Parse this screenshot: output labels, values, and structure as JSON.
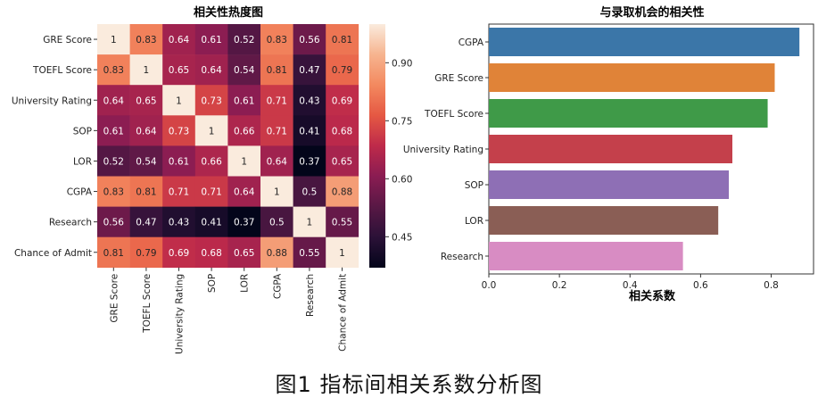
{
  "caption": "图1 指标间相关系数分析图",
  "chart_data": [
    {
      "type": "heatmap",
      "title": "相关性热度图",
      "row_labels": [
        "GRE Score",
        "TOEFL Score",
        "University Rating",
        "SOP",
        "LOR",
        "CGPA",
        "Research",
        "Chance of Admit"
      ],
      "col_labels": [
        "GRE Score",
        "TOEFL Score",
        "University Rating",
        "SOP",
        "LOR",
        "CGPA",
        "Research",
        "Chance of Admit"
      ],
      "cell_labels": [
        [
          "1",
          "0.83",
          "0.64",
          "0.61",
          "0.52",
          "0.83",
          "0.56",
          "0.81"
        ],
        [
          "0.83",
          "1",
          "0.65",
          "0.64",
          "0.54",
          "0.81",
          "0.47",
          "0.79"
        ],
        [
          "0.64",
          "0.65",
          "1",
          "0.73",
          "0.61",
          "0.71",
          "0.43",
          "0.69"
        ],
        [
          "0.61",
          "0.64",
          "0.73",
          "1",
          "0.66",
          "0.71",
          "0.41",
          "0.68"
        ],
        [
          "0.52",
          "0.54",
          "0.61",
          "0.66",
          "1",
          "0.64",
          "0.37",
          "0.65"
        ],
        [
          "0.83",
          "0.81",
          "0.71",
          "0.71",
          "0.64",
          "1",
          "0.5",
          "0.88"
        ],
        [
          "0.56",
          "0.47",
          "0.43",
          "0.41",
          "0.37",
          "0.5",
          "1",
          "0.55"
        ],
        [
          "0.81",
          "0.79",
          "0.69",
          "0.68",
          "0.65",
          "0.88",
          "0.55",
          "1"
        ]
      ],
      "values": [
        [
          1,
          0.83,
          0.64,
          0.61,
          0.52,
          0.83,
          0.56,
          0.81
        ],
        [
          0.83,
          1,
          0.65,
          0.64,
          0.54,
          0.81,
          0.47,
          0.79
        ],
        [
          0.64,
          0.65,
          1,
          0.73,
          0.61,
          0.71,
          0.43,
          0.69
        ],
        [
          0.61,
          0.64,
          0.73,
          1,
          0.66,
          0.71,
          0.41,
          0.68
        ],
        [
          0.52,
          0.54,
          0.61,
          0.66,
          1,
          0.64,
          0.37,
          0.65
        ],
        [
          0.83,
          0.81,
          0.71,
          0.71,
          0.64,
          1,
          0.5,
          0.88
        ],
        [
          0.56,
          0.47,
          0.43,
          0.41,
          0.37,
          0.5,
          1,
          0.55
        ],
        [
          0.81,
          0.79,
          0.69,
          0.68,
          0.65,
          0.88,
          0.55,
          1
        ]
      ],
      "colorbar": {
        "range": [
          0.37,
          1.0
        ],
        "ticks": [
          0.45,
          0.6,
          0.75,
          0.9
        ],
        "tick_labels": [
          "0.45",
          "0.60",
          "0.75",
          "0.90"
        ],
        "colormap": "rocket",
        "stops": [
          "#03051a",
          "#2b1137",
          "#581845",
          "#8a1c52",
          "#be2a4a",
          "#e55843",
          "#f3895f",
          "#f6b48f",
          "#faebdd"
        ]
      }
    },
    {
      "type": "bar",
      "orientation": "horizontal",
      "title": "与录取机会的相关性",
      "xlabel": "相关系数",
      "ylabel": "",
      "categories": [
        "CGPA",
        "GRE Score",
        "TOEFL Score",
        "University Rating",
        "SOP",
        "LOR",
        "Research"
      ],
      "values": [
        0.88,
        0.81,
        0.79,
        0.69,
        0.68,
        0.65,
        0.55
      ],
      "colors": [
        "#3b76a8",
        "#e08338",
        "#3f9a48",
        "#c4404b",
        "#8e6fb5",
        "#8a5e55",
        "#d88cc3"
      ],
      "xlim": [
        0,
        0.92
      ],
      "xticks": [
        0.0,
        0.2,
        0.4,
        0.6,
        0.8
      ],
      "xtick_labels": [
        "0.0",
        "0.2",
        "0.4",
        "0.6",
        "0.8"
      ]
    }
  ]
}
